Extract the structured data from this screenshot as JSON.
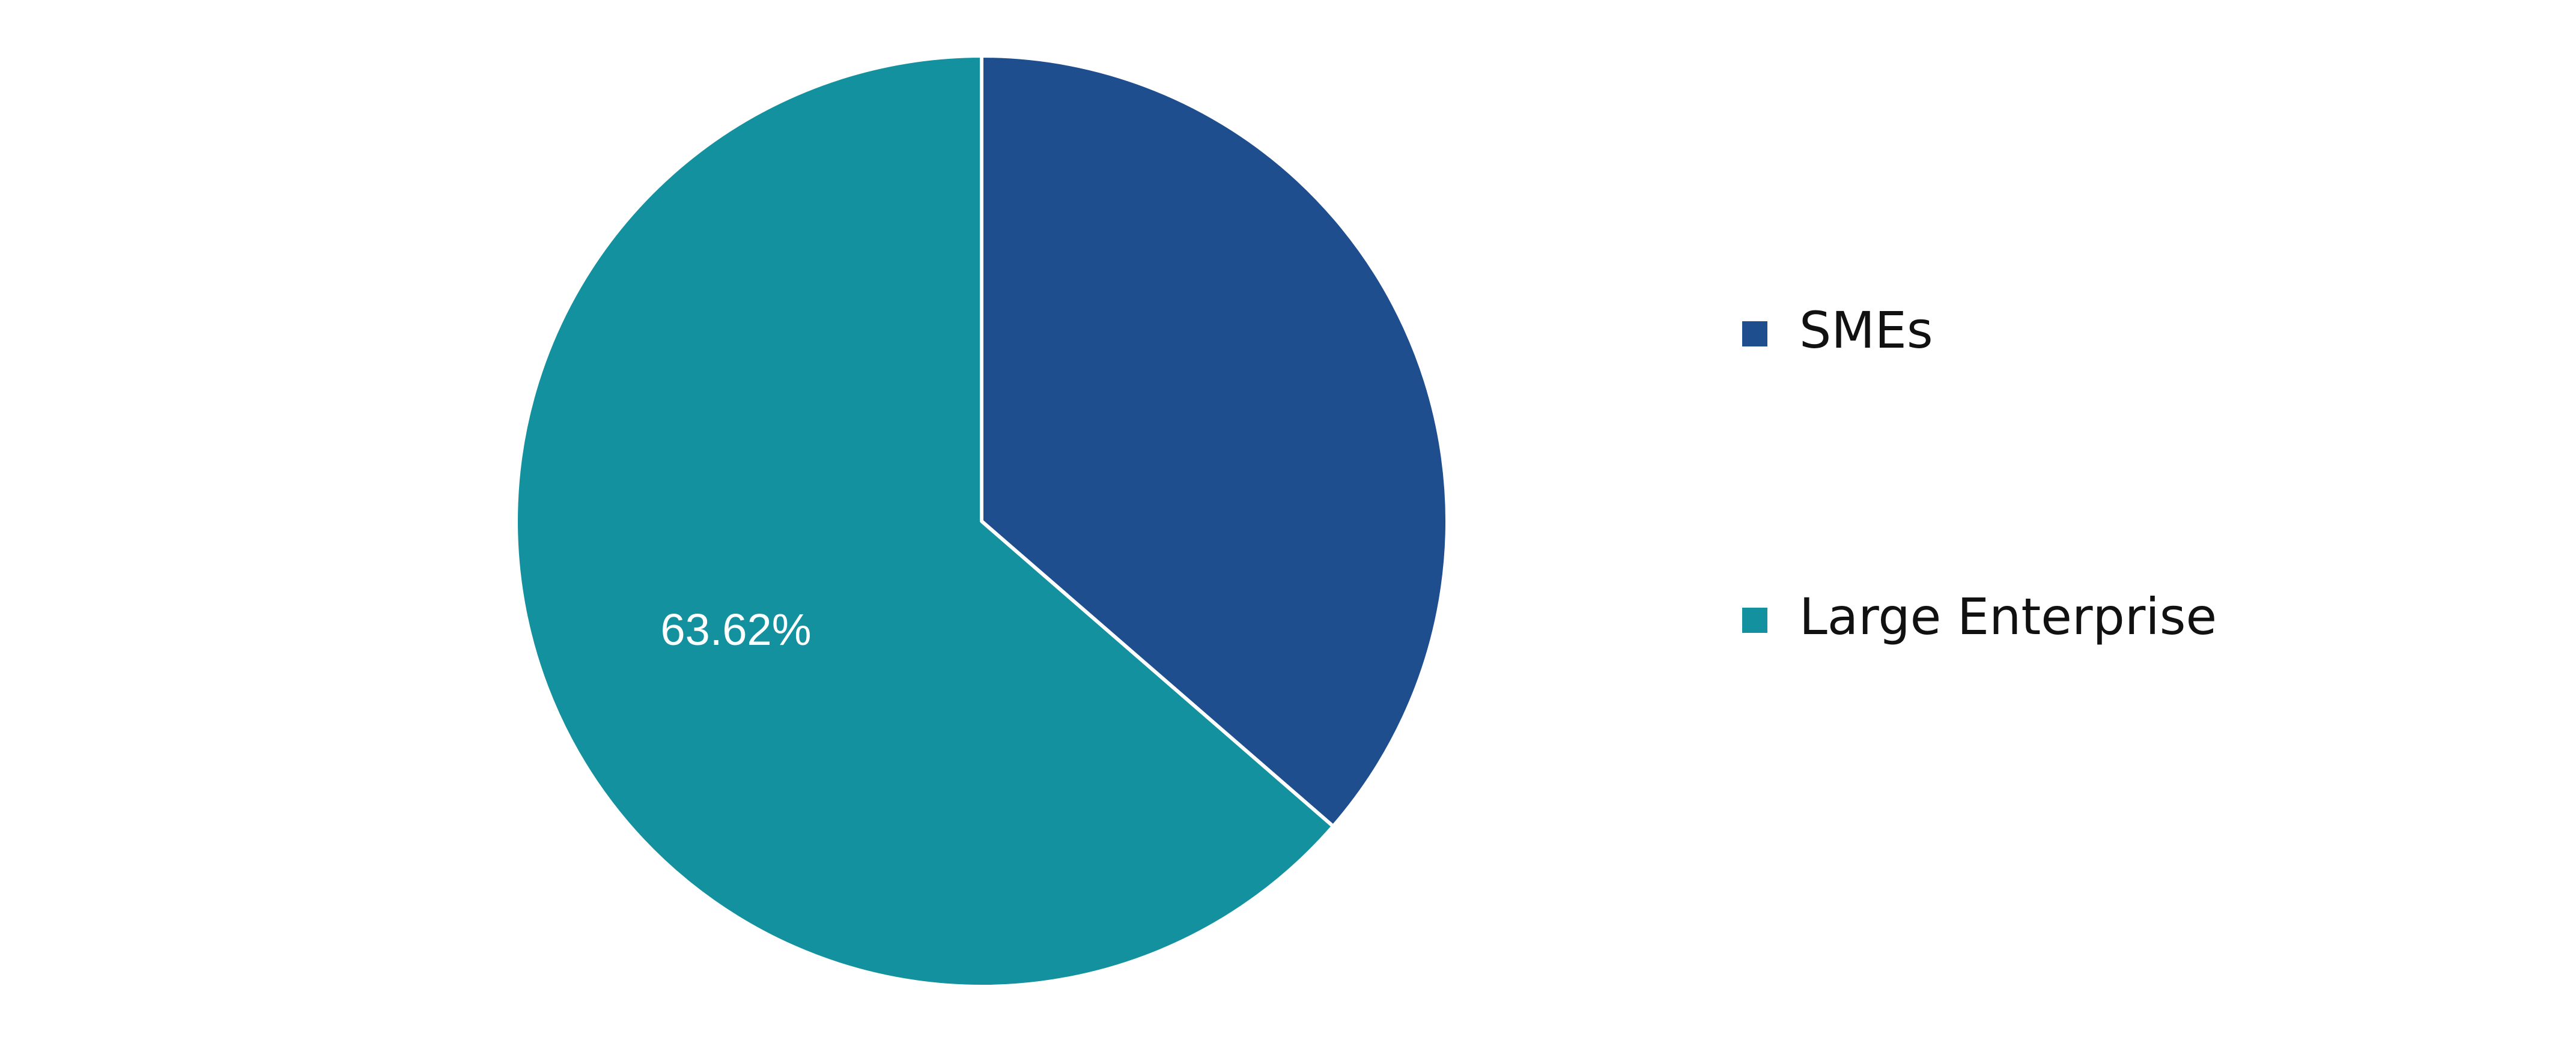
{
  "chart_data": {
    "type": "pie",
    "title": "",
    "categories": [
      "SMEs",
      "Large Enterprise"
    ],
    "values": [
      36.38,
      63.62
    ],
    "data_labels": [
      "",
      "63.62%"
    ],
    "colors": [
      "#1f4e8f",
      "#13919f"
    ],
    "start_angle_deg": 0,
    "direction": "clockwise",
    "legend": {
      "position": "right",
      "items": [
        {
          "label": "SMEs",
          "color": "#1f4e8f"
        },
        {
          "label": "Large Enterprise",
          "color": "#13919f"
        }
      ]
    }
  }
}
